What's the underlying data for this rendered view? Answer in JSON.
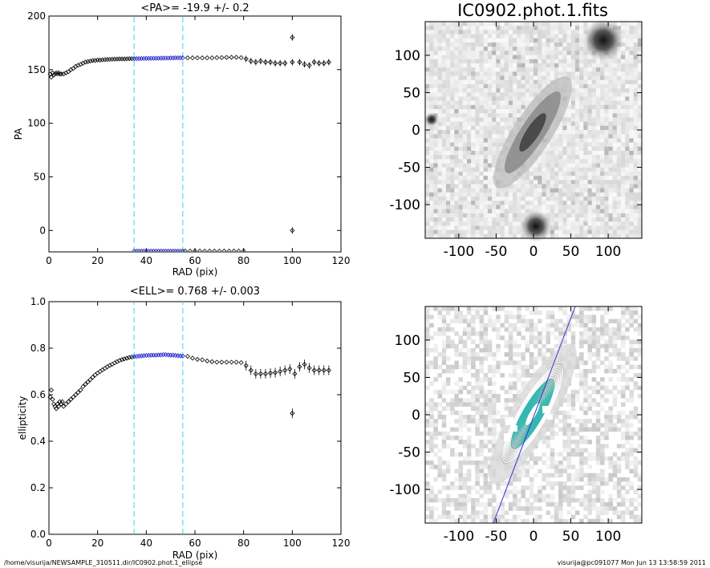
{
  "chart_data": [
    {
      "id": "pa_profile",
      "type": "scatter",
      "title": "<PA>= -19.9 +/-   0.2",
      "xlabel": "RAD (pix)",
      "ylabel": "PA",
      "xlim": [
        0,
        120
      ],
      "ylim": [
        -20,
        200
      ],
      "xticks": [
        0,
        20,
        40,
        60,
        80,
        100,
        120
      ],
      "yticks": [
        0,
        50,
        100,
        150,
        200
      ],
      "vlines": [
        35,
        55
      ],
      "vline_color": "#33d6e0",
      "marker_color": "#000000",
      "highlight_color": "#1a1acc",
      "points": [
        [
          0.5,
          146
        ],
        [
          1,
          143
        ],
        [
          1.5,
          147
        ],
        [
          2,
          145
        ],
        [
          2.5,
          146
        ],
        [
          3,
          147
        ],
        [
          3.5,
          146
        ],
        [
          4,
          147
        ],
        [
          4.5,
          146
        ],
        [
          5,
          146
        ],
        [
          6,
          146
        ],
        [
          7,
          147
        ],
        [
          8,
          148
        ],
        [
          9,
          150
        ],
        [
          10,
          151
        ],
        [
          11,
          153
        ],
        [
          12,
          154
        ],
        [
          13,
          155
        ],
        [
          14,
          156
        ],
        [
          15,
          157
        ],
        [
          16,
          157.5
        ],
        [
          17,
          158
        ],
        [
          18,
          158.5
        ],
        [
          19,
          158.5
        ],
        [
          20,
          159
        ],
        [
          21,
          159
        ],
        [
          22,
          159.2
        ],
        [
          23,
          159.4
        ],
        [
          24,
          159.5
        ],
        [
          25,
          159.6
        ],
        [
          26,
          159.7
        ],
        [
          27,
          159.8
        ],
        [
          28,
          159.9
        ],
        [
          29,
          160
        ],
        [
          30,
          160
        ],
        [
          31,
          160
        ],
        [
          32,
          160.1
        ],
        [
          33,
          160.2
        ],
        [
          34,
          160.2
        ],
        [
          35,
          160.2
        ],
        [
          36,
          160.3
        ],
        [
          37,
          160.3
        ],
        [
          38,
          160.4
        ],
        [
          39,
          160.4
        ],
        [
          40,
          160.5
        ],
        [
          41,
          160.5
        ],
        [
          42,
          160.6
        ],
        [
          43,
          160.6
        ],
        [
          44,
          160.6
        ],
        [
          45,
          160.7
        ],
        [
          46,
          160.7
        ],
        [
          47,
          160.8
        ],
        [
          48,
          160.8
        ],
        [
          49,
          160.8
        ],
        [
          50,
          160.9
        ],
        [
          51,
          160.9
        ],
        [
          52,
          161
        ],
        [
          53,
          161
        ],
        [
          54,
          161
        ],
        [
          55,
          161
        ],
        [
          57,
          161
        ],
        [
          59,
          161
        ],
        [
          61,
          161
        ],
        [
          63,
          161
        ],
        [
          65,
          161
        ],
        [
          67,
          161
        ],
        [
          69,
          161.2
        ],
        [
          71,
          161.2
        ],
        [
          73,
          161.4
        ],
        [
          75,
          161.5
        ],
        [
          77,
          161.5
        ],
        [
          79,
          161.2
        ],
        [
          81,
          160
        ],
        [
          83,
          158
        ],
        [
          85,
          157
        ],
        [
          87,
          158
        ],
        [
          89,
          157
        ],
        [
          91,
          157
        ],
        [
          93,
          156
        ],
        [
          95,
          156
        ],
        [
          97,
          156
        ],
        [
          100,
          157
        ],
        [
          100,
          180
        ],
        [
          100,
          0
        ],
        [
          103,
          157
        ],
        [
          105,
          155
        ],
        [
          107,
          154
        ],
        [
          109,
          157
        ],
        [
          111,
          156
        ],
        [
          113,
          156
        ],
        [
          115,
          157
        ]
      ],
      "bottom_points_x": [
        35,
        36,
        37,
        38,
        39,
        40,
        41,
        42,
        43,
        44,
        45,
        46,
        47,
        48,
        49,
        50,
        51,
        52,
        53,
        54,
        55,
        56,
        58,
        60,
        62,
        64,
        66,
        68,
        70,
        72,
        74,
        76,
        78,
        80
      ]
    },
    {
      "id": "ell_profile",
      "type": "scatter",
      "title": "<ELL>= 0.768 +/-  0.003",
      "xlabel": "RAD (pix)",
      "ylabel": "ellipticity",
      "xlim": [
        0,
        120
      ],
      "ylim": [
        0.0,
        1.0
      ],
      "xticks": [
        0,
        20,
        40,
        60,
        80,
        100,
        120
      ],
      "yticks": [
        "0.0",
        "0.2",
        "0.4",
        "0.6",
        "0.8",
        "1.0"
      ],
      "vlines": [
        35,
        55
      ],
      "vline_color": "#33d6e0",
      "marker_color": "#000000",
      "highlight_color": "#1a1acc",
      "points": [
        [
          0.5,
          0.59
        ],
        [
          1,
          0.62
        ],
        [
          1.5,
          0.58
        ],
        [
          2,
          0.56
        ],
        [
          2.5,
          0.55
        ],
        [
          3,
          0.54
        ],
        [
          3.5,
          0.56
        ],
        [
          4,
          0.55
        ],
        [
          4.5,
          0.57
        ],
        [
          5,
          0.56
        ],
        [
          5.5,
          0.57
        ],
        [
          6,
          0.55
        ],
        [
          7,
          0.56
        ],
        [
          8,
          0.57
        ],
        [
          9,
          0.58
        ],
        [
          10,
          0.59
        ],
        [
          11,
          0.6
        ],
        [
          12,
          0.61
        ],
        [
          13,
          0.62
        ],
        [
          14,
          0.635
        ],
        [
          15,
          0.645
        ],
        [
          16,
          0.655
        ],
        [
          17,
          0.665
        ],
        [
          18,
          0.675
        ],
        [
          19,
          0.685
        ],
        [
          20,
          0.693
        ],
        [
          21,
          0.7
        ],
        [
          22,
          0.707
        ],
        [
          23,
          0.713
        ],
        [
          24,
          0.72
        ],
        [
          25,
          0.726
        ],
        [
          26,
          0.731
        ],
        [
          27,
          0.737
        ],
        [
          28,
          0.742
        ],
        [
          29,
          0.747
        ],
        [
          30,
          0.751
        ],
        [
          31,
          0.754
        ],
        [
          32,
          0.757
        ],
        [
          33,
          0.76
        ],
        [
          34,
          0.762
        ],
        [
          35,
          0.764
        ],
        [
          36,
          0.765
        ],
        [
          37,
          0.766
        ],
        [
          38,
          0.767
        ],
        [
          39,
          0.768
        ],
        [
          40,
          0.769
        ],
        [
          41,
          0.769
        ],
        [
          42,
          0.77
        ],
        [
          43,
          0.77
        ],
        [
          44,
          0.77
        ],
        [
          45,
          0.771
        ],
        [
          46,
          0.771
        ],
        [
          47,
          0.772
        ],
        [
          48,
          0.772
        ],
        [
          49,
          0.771
        ],
        [
          50,
          0.77
        ],
        [
          51,
          0.77
        ],
        [
          52,
          0.769
        ],
        [
          53,
          0.768
        ],
        [
          54,
          0.767
        ],
        [
          55,
          0.766
        ],
        [
          57,
          0.765
        ],
        [
          59,
          0.757
        ],
        [
          61,
          0.752
        ],
        [
          63,
          0.75
        ],
        [
          65,
          0.745
        ],
        [
          67,
          0.742
        ],
        [
          69,
          0.74
        ],
        [
          71,
          0.74
        ],
        [
          73,
          0.74
        ],
        [
          75,
          0.74
        ],
        [
          77,
          0.74
        ],
        [
          79,
          0.738
        ],
        [
          81,
          0.725
        ],
        [
          83,
          0.705
        ],
        [
          85,
          0.69
        ],
        [
          87,
          0.69
        ],
        [
          89,
          0.69
        ],
        [
          91,
          0.693
        ],
        [
          93,
          0.695
        ],
        [
          95,
          0.7
        ],
        [
          97,
          0.705
        ],
        [
          99,
          0.71
        ],
        [
          100,
          0.52
        ],
        [
          101,
          0.69
        ],
        [
          103,
          0.72
        ],
        [
          105,
          0.73
        ],
        [
          107,
          0.715
        ],
        [
          109,
          0.705
        ],
        [
          111,
          0.705
        ],
        [
          113,
          0.705
        ],
        [
          115,
          0.705
        ]
      ]
    },
    {
      "id": "galaxy_image",
      "type": "heatmap",
      "title": "IC0902.phot.1.fits",
      "xlim": [
        -145,
        145
      ],
      "ylim": [
        -145,
        145
      ],
      "xticks": [
        -100,
        -50,
        0,
        50,
        100
      ],
      "yticks": [
        -100,
        -50,
        0,
        50,
        100
      ],
      "colormap": "gray-inverted"
    },
    {
      "id": "isophote_image",
      "type": "heatmap",
      "title": "",
      "xlim": [
        -145,
        145
      ],
      "ylim": [
        -145,
        145
      ],
      "xticks": [
        -100,
        -50,
        0,
        50,
        100
      ],
      "yticks": [
        -100,
        -50,
        0,
        50,
        100
      ],
      "colormap": "gray-inverted",
      "contour_color": "#2fb8b0",
      "major_axis_color": "#3333cc"
    }
  ],
  "footer": {
    "left": "/home/visurija/NEWSAMPLE_310511.dir/IC0902.phot.1_ellipse",
    "right": "visurija@pc091077  Mon Jun 13 13:58:59 2011"
  }
}
